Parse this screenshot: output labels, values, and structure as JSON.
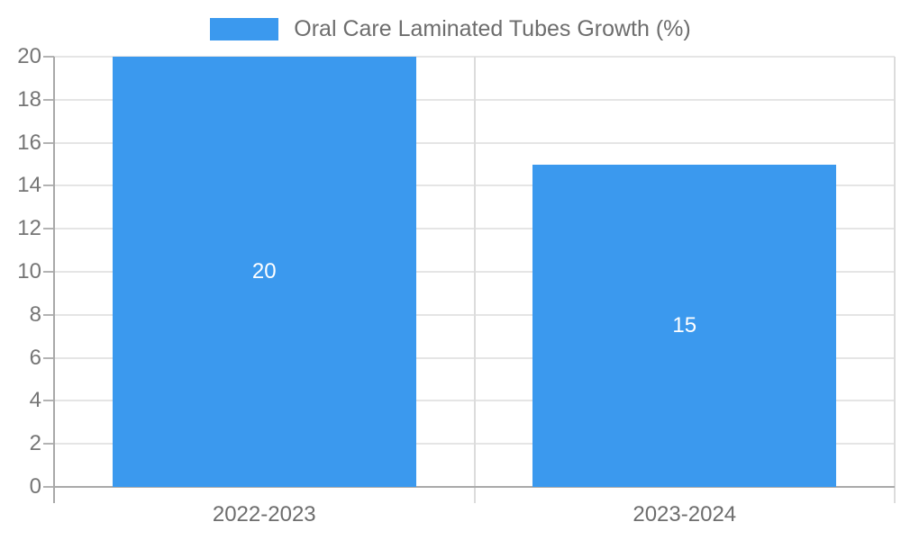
{
  "chart_data": {
    "type": "bar",
    "title": "Oral Care Laminated Tubes Growth (%)",
    "categories": [
      "2022-2023",
      "2023-2024"
    ],
    "values": [
      20,
      15
    ],
    "data_labels": [
      "20",
      "15"
    ],
    "xlabel": "",
    "ylabel": "",
    "ylim": [
      0,
      20
    ],
    "ytick_step": 2,
    "yticks": [
      0,
      2,
      4,
      6,
      8,
      10,
      12,
      14,
      16,
      18,
      20
    ],
    "grid": true,
    "legend_position": "top-center",
    "colors": {
      "bar": "#3b99ee",
      "legend_text": "#6d6d6d",
      "tick_text": "#757575",
      "data_label_text": "#ffffff",
      "gridline": "#e5e5e5",
      "category_line": "#dcdcdc",
      "axis": "#a9a9a9",
      "tick_mark": "#b3b3b3",
      "background": "#ffffff"
    }
  }
}
